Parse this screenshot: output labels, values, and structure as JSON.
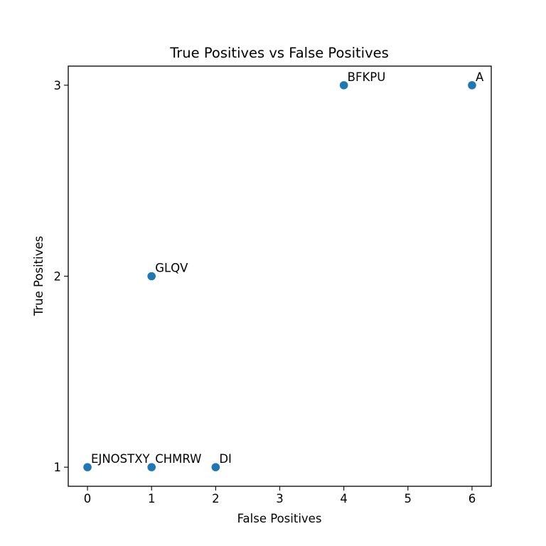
{
  "chart_data": {
    "type": "scatter",
    "title": "True Positives vs False Positives",
    "xlabel": "False Positives",
    "ylabel": "True Positives",
    "xlim": [
      -0.3,
      6.3
    ],
    "ylim": [
      0.9,
      3.1
    ],
    "xticks": [
      0,
      1,
      2,
      3,
      4,
      5,
      6
    ],
    "yticks": [
      1,
      2,
      3
    ],
    "grid": false,
    "marker_color": "#1f77b4",
    "points": [
      {
        "x": 0,
        "y": 1,
        "label": "EJNOSTXY"
      },
      {
        "x": 1,
        "y": 1,
        "label": "CHMRW"
      },
      {
        "x": 2,
        "y": 1,
        "label": "DI"
      },
      {
        "x": 1,
        "y": 2,
        "label": "GLQV"
      },
      {
        "x": 4,
        "y": 3,
        "label": "BFKPU"
      },
      {
        "x": 6,
        "y": 3,
        "label": "A"
      }
    ]
  }
}
